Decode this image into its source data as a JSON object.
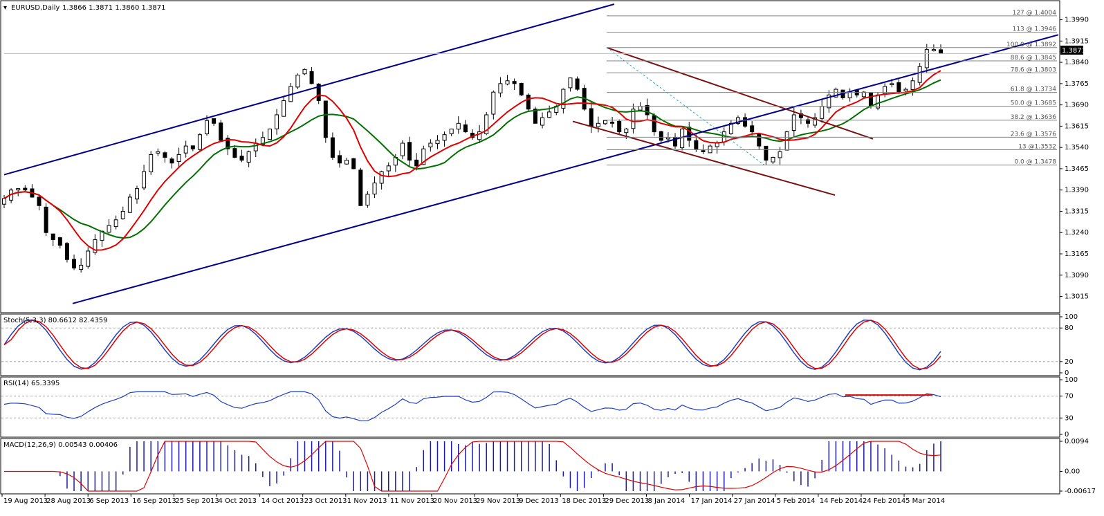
{
  "header": {
    "symbol_text": "EURUSD,Daily",
    "ohlc_text": "1.3866 1.3871 1.3860 1.3871"
  },
  "current_price_label": "1.3871",
  "colors": {
    "bull_candle": "#ffffff",
    "bear_candle": "#000000",
    "channel": "#00008b",
    "falling_channel": "#7b1010",
    "ma_fast": "#e00000",
    "ma_slow": "#007000",
    "ma_flat": "#ffff00",
    "stoch_main": "#1f3fbf",
    "stoch_signal": "#e00000",
    "macd_hist": "#1a1aa6",
    "macd_signal": "#e00000"
  },
  "chart_data": [
    {
      "type": "candlestick",
      "series_name": "EURUSD,Daily",
      "ylim": [
        1.297,
        1.4045
      ],
      "y_ticks": [
        "1.3990",
        "1.3915",
        "1.3840",
        "1.3765",
        "1.3690",
        "1.3615",
        "1.3540",
        "1.3465",
        "1.3390",
        "1.3315",
        "1.3240",
        "1.3165",
        "1.3090",
        "1.3015"
      ],
      "x_labels": [
        "19 Aug 2013",
        "28 Aug 2013",
        "6 Sep 2013",
        "16 Sep 2013",
        "25 Sep 2013",
        "4 Oct 2013",
        "14 Oct 2013",
        "23 Oct 2013",
        "1 Nov 2013",
        "11 Nov 2013",
        "20 Nov 2013",
        "29 Nov 2013",
        "9 Dec 2013",
        "18 Dec 2013",
        "29 Dec 2013",
        "8 Jan 2014",
        "17 Jan 2014",
        "27 Jan 2014",
        "5 Feb 2014",
        "14 Feb 2014",
        "24 Feb 2014",
        "5 Mar 2014"
      ],
      "close_path": [
        1.336,
        1.339,
        1.3395,
        1.339,
        1.3365,
        1.3335,
        1.324,
        1.3215,
        1.3195,
        1.3145,
        1.3115,
        1.3125,
        1.3175,
        1.3215,
        1.3245,
        1.3265,
        1.3285,
        1.3315,
        1.3365,
        1.3395,
        1.3455,
        1.3515,
        1.3525,
        1.3505,
        1.3485,
        1.3515,
        1.3545,
        1.3535,
        1.3585,
        1.3635,
        1.3625,
        1.3565,
        1.3535,
        1.3505,
        1.3495,
        1.3525,
        1.3555,
        1.3575,
        1.3605,
        1.3655,
        1.3705,
        1.3755,
        1.3795,
        1.3815,
        1.3765,
        1.3705,
        1.3575,
        1.3505,
        1.3485,
        1.3495,
        1.3465,
        1.3335,
        1.3375,
        1.3415,
        1.3455,
        1.3475,
        1.3505,
        1.3555,
        1.3495,
        1.3475,
        1.3535,
        1.3555,
        1.3565,
        1.3585,
        1.3605,
        1.3625,
        1.3595,
        1.3575,
        1.3595,
        1.3655,
        1.3735,
        1.3765,
        1.3775,
        1.3765,
        1.3725,
        1.3675,
        1.3625,
        1.3645,
        1.3665,
        1.3685,
        1.3745,
        1.3785,
        1.3745,
        1.3675,
        1.3615,
        1.3625,
        1.3635,
        1.3625,
        1.3595,
        1.3605,
        1.3675,
        1.3685,
        1.3655,
        1.3595,
        1.3565,
        1.3575,
        1.3545,
        1.3605,
        1.3565,
        1.3535,
        1.3525,
        1.3545,
        1.3555,
        1.3595,
        1.3625,
        1.3645,
        1.3615,
        1.3595,
        1.3545,
        1.3495,
        1.3505,
        1.3525,
        1.3595,
        1.3655,
        1.3645,
        1.3625,
        1.3645,
        1.3685,
        1.3725,
        1.3745,
        1.3715,
        1.3735,
        1.3725,
        1.3735,
        1.3685,
        1.3725,
        1.3755,
        1.3765,
        1.3735,
        1.3745,
        1.3775,
        1.3825,
        1.3885,
        1.3885,
        1.3871
      ],
      "fibonacci_levels": [
        {
          "label": "127 @ 1.4004",
          "value": 1.4004
        },
        {
          "label": "113 @ 1.3946",
          "value": 1.3946
        },
        {
          "label": "100.0 @ 1.3892",
          "value": 1.3892
        },
        {
          "label": "88.6 @ 1.3845",
          "value": 1.3845
        },
        {
          "label": "78.6 @ 1.3803",
          "value": 1.3803
        },
        {
          "label": "61.8 @ 1.3734",
          "value": 1.3734
        },
        {
          "label": "50.0 @ 1.3685",
          "value": 1.3685
        },
        {
          "label": "38.2 @ 1.3636",
          "value": 1.3636
        },
        {
          "label": "23.6 @ 1.3576",
          "value": 1.3576
        },
        {
          "label": "13 @1.3532",
          "value": 1.3532
        },
        {
          "label": "0.0 @ 1.3478",
          "value": 1.3478
        }
      ]
    },
    {
      "type": "line",
      "title": "Stoch(5,3,3) 80.6612 82.4359",
      "ylim": [
        0,
        100
      ],
      "y_ticks": [
        "100",
        "80",
        "20",
        "0"
      ],
      "levels": [
        80,
        20
      ]
    },
    {
      "type": "line",
      "title": "RSI(14) 65.3395",
      "ylim": [
        0,
        100
      ],
      "y_ticks": [
        "100",
        "70",
        "30",
        "0"
      ],
      "levels": [
        70,
        30
      ]
    },
    {
      "type": "bar",
      "title": "MACD(12,26,9) 0.00543 0.00406",
      "ylim": [
        -0.00617,
        0.0094
      ],
      "y_ticks": [
        "0.0094",
        "0.00",
        "-0.00617"
      ]
    }
  ]
}
